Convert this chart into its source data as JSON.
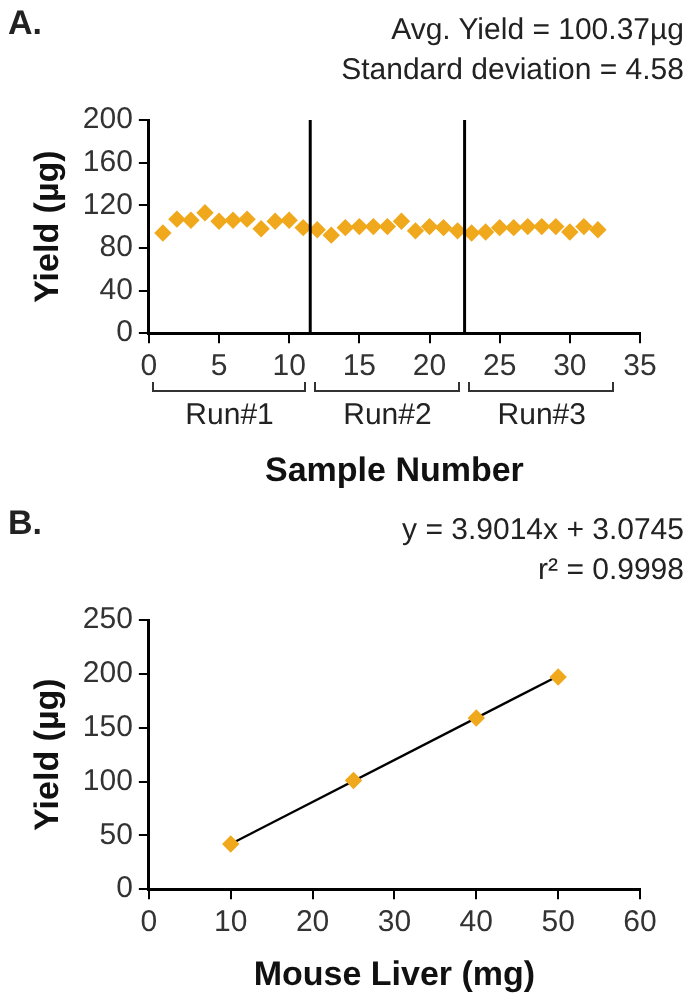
{
  "chart_data": [
    {
      "type": "scatter",
      "title": "A.",
      "xlabel": "Sample Number",
      "ylabel": "Yield (µg)",
      "annotations": [
        "Avg. Yield = 100.37µg",
        "Standard deviation = 4.58",
        "Run#1",
        "Run#2",
        "Run#3"
      ],
      "x": [
        1,
        2,
        3,
        4,
        5,
        6,
        7,
        8,
        9,
        10,
        11,
        12,
        13,
        14,
        15,
        16,
        17,
        18,
        19,
        20,
        21,
        22,
        23,
        24,
        25,
        26,
        27,
        28,
        29,
        30,
        31,
        32
      ],
      "series": [
        {
          "color": "#f0a81c",
          "values": [
            94,
            107,
            106,
            113,
            105,
            106,
            107,
            98,
            105,
            106,
            99,
            97,
            92,
            99,
            100,
            100,
            100,
            105,
            96,
            100,
            99,
            96,
            94,
            95,
            99,
            99,
            100,
            100,
            100,
            95,
            100,
            97
          ]
        }
      ],
      "xlim": [
        0,
        35
      ],
      "xticks": [
        0,
        5,
        10,
        15,
        20,
        25,
        30,
        35
      ],
      "ylim": [
        0,
        200
      ],
      "yticks": [
        0,
        40,
        80,
        120,
        160,
        200
      ],
      "ref_lines": [
        {
          "axis": "x",
          "value": 11.5,
          "color": "#000000"
        },
        {
          "axis": "x",
          "value": 22.5,
          "color": "#000000"
        }
      ],
      "grid": false,
      "legend": false,
      "marker": "diamond"
    },
    {
      "type": "scatter",
      "title": "B.",
      "xlabel": "Mouse Liver (mg)",
      "ylabel": "Yield (µg)",
      "annotations": [
        "y = 3.9014x + 3.0745",
        "r² = 0.9998"
      ],
      "x": [
        10,
        25,
        40,
        50
      ],
      "series": [
        {
          "color": "#f0a81c",
          "values": [
            42,
            101,
            159,
            197
          ]
        },
        {
          "type": "line",
          "color": "#000000",
          "marker": "none",
          "x": [
            10,
            50
          ],
          "values": [
            42,
            198
          ]
        }
      ],
      "xlim": [
        0,
        60
      ],
      "xticks": [
        0,
        10,
        20,
        30,
        40,
        50,
        60
      ],
      "ylim": [
        0,
        250
      ],
      "yticks": [
        0,
        50,
        100,
        150,
        200,
        250
      ],
      "grid": false,
      "legend": false,
      "marker": "diamond"
    }
  ]
}
